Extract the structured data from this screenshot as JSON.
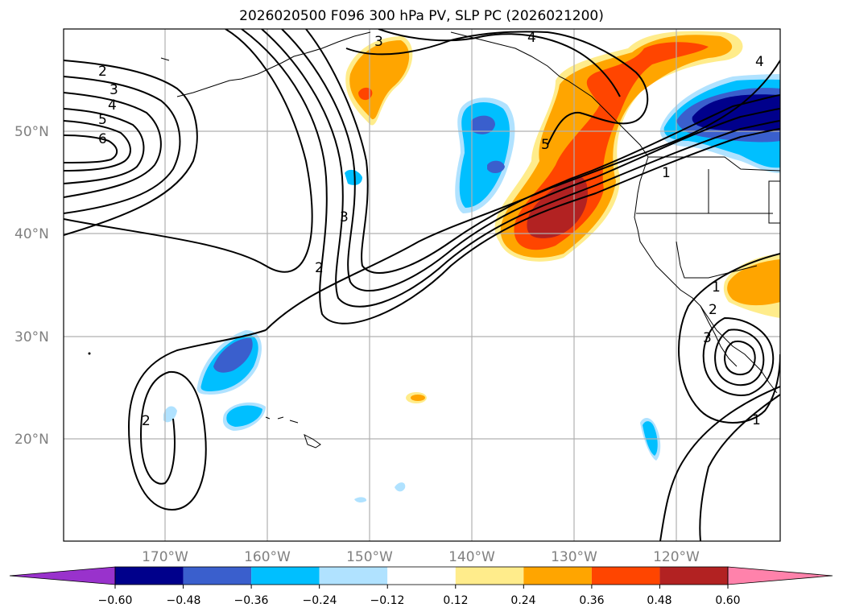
{
  "title": "2026020500 F096 300 hPa PV, SLP PC (2026021200)",
  "lat_labels": [
    "50°N",
    "40°N",
    "30°N",
    "20°N"
  ],
  "lon_labels": [
    "170°W",
    "160°W",
    "150°W",
    "140°W",
    "130°W",
    "120°W"
  ],
  "colorbar": {
    "ticks": [
      "−0.60",
      "−0.48",
      "−0.36",
      "−0.24",
      "−0.12",
      "0.12",
      "0.24",
      "0.36",
      "0.48",
      "0.60"
    ],
    "colors": [
      "#9932cc",
      "#00008b",
      "#3a5fcd",
      "#00bfff",
      "#b0e2ff",
      "#ffffff",
      "#ffec8b",
      "#ffa500",
      "#ff4500",
      "#b22222",
      "#ff82ab"
    ]
  },
  "contour_labels": [
    "2",
    "3",
    "4",
    "5",
    "6",
    "3",
    "4",
    "4",
    "5",
    "3",
    "2",
    "2",
    "1",
    "1",
    "2",
    "3",
    "1"
  ]
}
